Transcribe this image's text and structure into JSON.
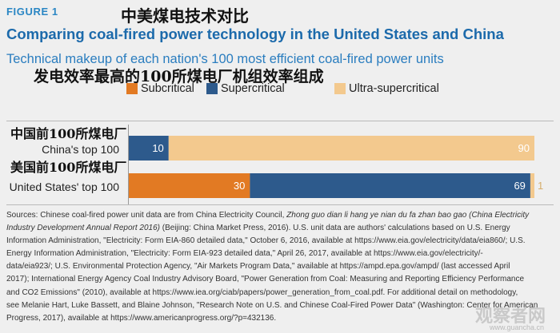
{
  "figure_label": "FIGURE 1",
  "overlay_cn": {
    "title": "中美煤电技术对比",
    "subtitle": "发电效率最高的100所煤电厂机组效率组成"
  },
  "colors": {
    "background": "#efefef",
    "figure_label": "#2a86c4",
    "title": "#1c6aab",
    "subtitle": "#2a7dbf",
    "data_label_inside": "#ffffff",
    "data_label_outside": "#d6ad6b",
    "axis": "#9a9a9a"
  },
  "chart_data": {
    "type": "bar",
    "orientation": "horizontal",
    "stacked": true,
    "title": "Comparing coal-fired power technology in the United States and China",
    "subtitle": "Technical makeup of each nation's 100 most efficient coal-fired power units",
    "categories": [
      "China's top 100",
      "United States' top 100"
    ],
    "categories_cn": [
      "中国前100所煤电厂",
      "美国前100所煤电厂"
    ],
    "series": [
      {
        "name": "Subcritical",
        "color": "#e27a23",
        "values": [
          0,
          30
        ]
      },
      {
        "name": "Supercritical",
        "color": "#2d5a8c",
        "values": [
          10,
          69
        ]
      },
      {
        "name": "Ultra-supercritical",
        "color": "#f3c98e",
        "values": [
          90,
          1
        ]
      }
    ],
    "xlim": [
      0,
      100
    ],
    "legend_position": "top",
    "grid": false,
    "data_labels": true
  },
  "sources": {
    "lines": [
      {
        "text": "Sources: Chinese coal-fired power unit data are from China Electricity Council, ",
        "italic": "Zhong guo dian li hang ye nian du fa zhan bao gao (China Electricity"
      },
      {
        "italic": "Industry Development Annual Report 2016)",
        "text": " (Beijing: China Market Press, 2016). U.S. unit data are authors' calculations based on U.S. Energy"
      },
      {
        "text": "Information Administration, \"Electricity: Form EIA-860 detailed data,\" October 6, 2016, available at https://www.eia.gov/electricity/data/eia860/; U.S."
      },
      {
        "text": "Energy Information Administration, \"Electricity: Form EIA-923 detailed data,\" April 26, 2017, available at https://www.eia.gov/electricity/-"
      },
      {
        "text": "data/eia923/; U.S. Environmental Protection Agency, \"Air Markets Program Data,\" available at https://ampd.epa.gov/ampd/ (last accessed April"
      },
      {
        "text": "2017); International Energy Agency Coal Industry Advisory Board, \"Power Generation from Coal: Measuring and Reporting Efficiency Performance"
      },
      {
        "text": "and CO2 Emissions\" (2010), available at https://www.iea.org/ciab/papers/power_generation_from_coal.pdf. For additional detail on methodology,"
      },
      {
        "text": "see Melanie Hart, Luke Bassett, and Blaine Johnson, \"Research Note on U.S. and Chinese Coal-Fired Power Data\" (Washington: Center for American"
      },
      {
        "text": "Progress, 2017), available at https://www.americanprogress.org/?p=432136."
      }
    ]
  },
  "watermark": {
    "name": "观察者网",
    "url": "www.guancha.cn"
  }
}
